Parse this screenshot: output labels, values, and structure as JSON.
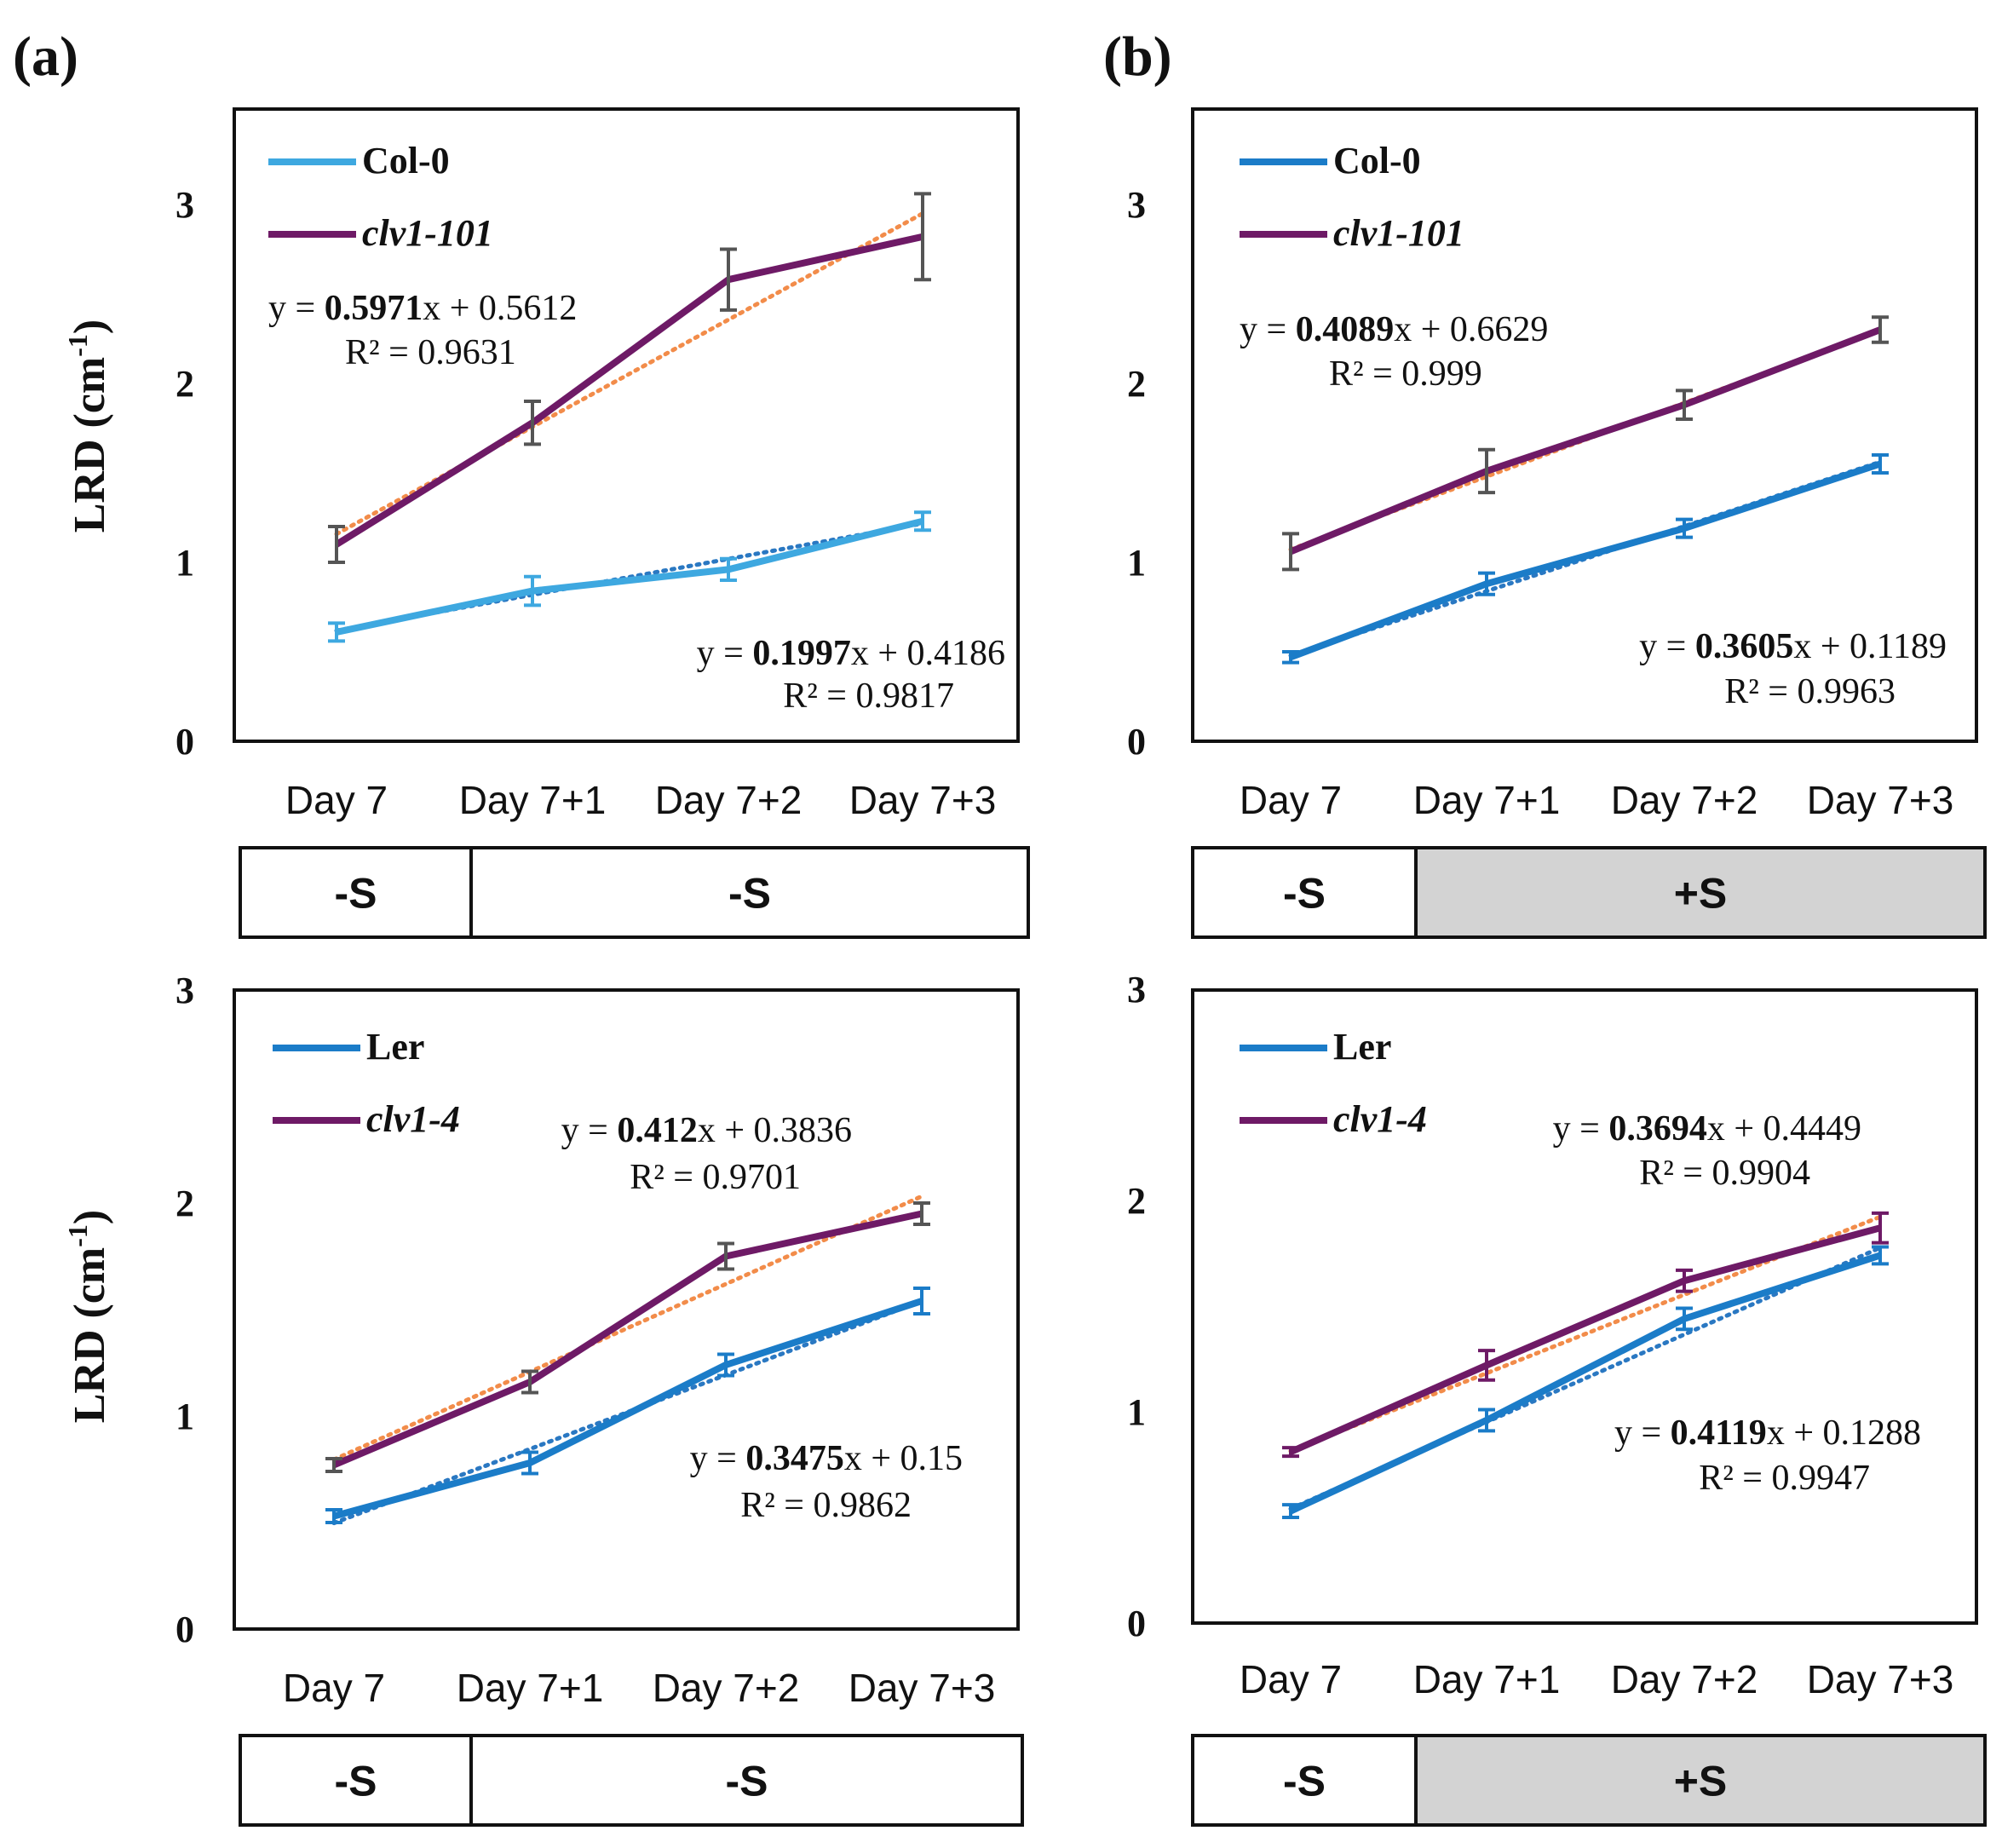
{
  "panel_labels": [
    "(a)",
    "(b)"
  ],
  "colors": {
    "col0_light": "#3ea8e0",
    "wt_blue": "#1b7cc8",
    "mutant_purple": "#6e1a66",
    "trend_orange": "#f28c4a",
    "trend_blue": "#2a78c2",
    "error_gray": "#555555",
    "shade": "#d3d3d3"
  },
  "chart_data": [
    {
      "id": "a-top",
      "type": "line",
      "ylabel": "LRD (cm",
      "ylabel_sup": "-1",
      "ylabel_close": ")",
      "categories": [
        "Day 7",
        "Day 7+1",
        "Day 7+2",
        "Day 7+3"
      ],
      "yticks": [
        "0",
        "1",
        "2",
        "3"
      ],
      "ylim": [
        0,
        3.5
      ],
      "series": [
        {
          "name": "Col-0",
          "italic": false,
          "color_key": "col0_light",
          "errcolor_key": "col0_light",
          "trendcolor_key": "trend_blue",
          "values": [
            0.61,
            0.84,
            0.96,
            1.23
          ],
          "errors": [
            0.05,
            0.08,
            0.06,
            0.05
          ],
          "trend": {
            "slope": 0.1997,
            "intercept": 0.4186
          },
          "eq_prefix": "y = ",
          "eq_slope": "0.1997",
          "eq_suffix": "x + 0.4186",
          "r2": "R² = 0.9817"
        },
        {
          "name": "clv1-101",
          "italic": true,
          "color_key": "mutant_purple",
          "errcolor_key": "error_gray",
          "trendcolor_key": "trend_orange",
          "values": [
            1.1,
            1.78,
            2.58,
            2.82
          ],
          "errors": [
            0.1,
            0.12,
            0.17,
            0.24
          ],
          "trend": {
            "slope": 0.5971,
            "intercept": 0.5612
          },
          "eq_prefix": "y = ",
          "eq_slope": "0.5971",
          "eq_suffix": "x + 0.5612",
          "r2": "R² = 0.9631"
        }
      ],
      "conditions": [
        {
          "label": "-S",
          "shaded": false
        },
        {
          "label": "-S",
          "shaded": false
        }
      ]
    },
    {
      "id": "b-top",
      "type": "line",
      "ylabel": "",
      "categories": [
        "Day 7",
        "Day 7+1",
        "Day 7+2",
        "Day 7+3"
      ],
      "yticks": [
        "0",
        "1",
        "2",
        "3"
      ],
      "ylim": [
        0,
        3.5
      ],
      "series": [
        {
          "name": "Col-0",
          "italic": false,
          "color_key": "wt_blue",
          "errcolor_key": "wt_blue",
          "trendcolor_key": "trend_blue",
          "values": [
            0.47,
            0.88,
            1.19,
            1.55
          ],
          "errors": [
            0.03,
            0.06,
            0.05,
            0.05
          ],
          "trend": {
            "slope": 0.3605,
            "intercept": 0.1189
          },
          "eq_prefix": "y = ",
          "eq_slope": "0.3605",
          "eq_suffix": "x + 0.1189",
          "r2": "R² = 0.9963"
        },
        {
          "name": "clv1-101",
          "italic": true,
          "color_key": "mutant_purple",
          "errcolor_key": "error_gray",
          "trendcolor_key": "trend_orange",
          "values": [
            1.06,
            1.51,
            1.88,
            2.3
          ],
          "errors": [
            0.1,
            0.12,
            0.08,
            0.07
          ],
          "trend": {
            "slope": 0.4089,
            "intercept": 0.6629
          },
          "eq_prefix": "y = ",
          "eq_slope": "0.4089",
          "eq_suffix": "x + 0.6629",
          "r2": "R² = 0.999"
        }
      ],
      "conditions": [
        {
          "label": "-S",
          "shaded": false
        },
        {
          "label": "+S",
          "shaded": true
        }
      ]
    },
    {
      "id": "a-bottom",
      "type": "line",
      "ylabel": "LRD (cm",
      "ylabel_sup": "-1",
      "ylabel_close": ")",
      "categories": [
        "Day 7",
        "Day 7+1",
        "Day 7+2",
        "Day 7+3"
      ],
      "yticks": [
        "0",
        "1",
        "2",
        "3"
      ],
      "ylim": [
        0,
        3
      ],
      "series": [
        {
          "name": "Ler",
          "italic": false,
          "color_key": "wt_blue",
          "errcolor_key": "wt_blue",
          "trendcolor_key": "trend_blue",
          "values": [
            0.53,
            0.78,
            1.24,
            1.54
          ],
          "errors": [
            0.03,
            0.05,
            0.05,
            0.06
          ],
          "trend": {
            "slope": 0.3475,
            "intercept": 0.15
          },
          "eq_prefix": "y = ",
          "eq_slope": "0.3475",
          "eq_suffix": "x + 0.15",
          "r2": "R² = 0.9862"
        },
        {
          "name": "clv1-4",
          "italic": true,
          "color_key": "mutant_purple",
          "errcolor_key": "error_gray",
          "trendcolor_key": "trend_orange",
          "values": [
            0.77,
            1.16,
            1.75,
            1.95
          ],
          "errors": [
            0.03,
            0.05,
            0.06,
            0.05
          ],
          "trend": {
            "slope": 0.412,
            "intercept": 0.3836
          },
          "eq_prefix": "y = ",
          "eq_slope": "0.412",
          "eq_suffix": "x + 0.3836",
          "r2": "R² = 0.9701"
        }
      ],
      "conditions": [
        {
          "label": "-S",
          "shaded": false
        },
        {
          "label": "-S",
          "shaded": false
        }
      ]
    },
    {
      "id": "b-bottom",
      "type": "line",
      "ylabel": "",
      "categories": [
        "Day 7",
        "Day 7+1",
        "Day 7+2",
        "Day 7+3"
      ],
      "yticks": [
        "0",
        "1",
        "2",
        "3"
      ],
      "ylim": [
        0,
        3
      ],
      "series": [
        {
          "name": "Ler",
          "italic": false,
          "color_key": "wt_blue",
          "errcolor_key": "wt_blue",
          "trendcolor_key": "trend_blue",
          "values": [
            0.53,
            0.96,
            1.44,
            1.74
          ],
          "errors": [
            0.03,
            0.05,
            0.05,
            0.04
          ],
          "trend": {
            "slope": 0.4119,
            "intercept": 0.1288
          },
          "eq_prefix": "y = ",
          "eq_slope": "0.4119",
          "eq_suffix": "x + 0.1288",
          "r2": "R² = 0.9947"
        },
        {
          "name": "clv1-4",
          "italic": true,
          "color_key": "mutant_purple",
          "errcolor_key": "mutant_purple",
          "trendcolor_key": "trend_orange",
          "values": [
            0.81,
            1.22,
            1.62,
            1.87
          ],
          "errors": [
            0.02,
            0.07,
            0.05,
            0.07
          ],
          "trend": {
            "slope": 0.3694,
            "intercept": 0.4449
          },
          "eq_prefix": "y = ",
          "eq_slope": "0.3694",
          "eq_suffix": "x + 0.4449",
          "r2": "R² = 0.9904"
        }
      ],
      "conditions": [
        {
          "label": "-S",
          "shaded": false
        },
        {
          "label": "+S",
          "shaded": true
        }
      ]
    }
  ]
}
